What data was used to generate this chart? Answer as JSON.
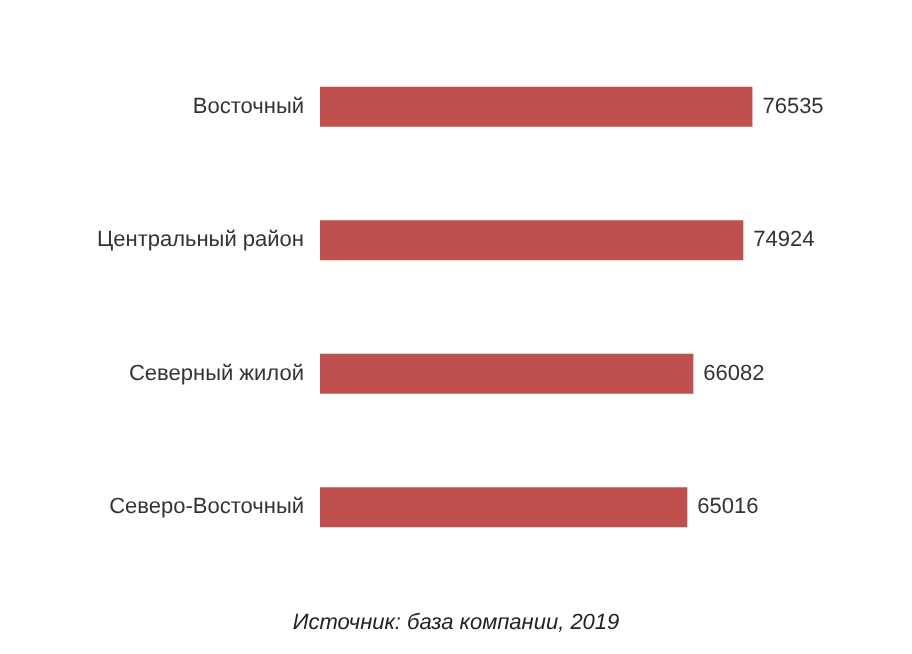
{
  "chart_data": {
    "type": "bar",
    "orientation": "horizontal",
    "categories": [
      "Восточный",
      "Центральный район",
      "Северный жилой",
      "Северо-Восточный"
    ],
    "values": [
      76535,
      74924,
      66082,
      65016
    ],
    "color": "#c0504d",
    "data_labels": true,
    "annotations": [
      "Источник: база компании, 2019"
    ]
  }
}
